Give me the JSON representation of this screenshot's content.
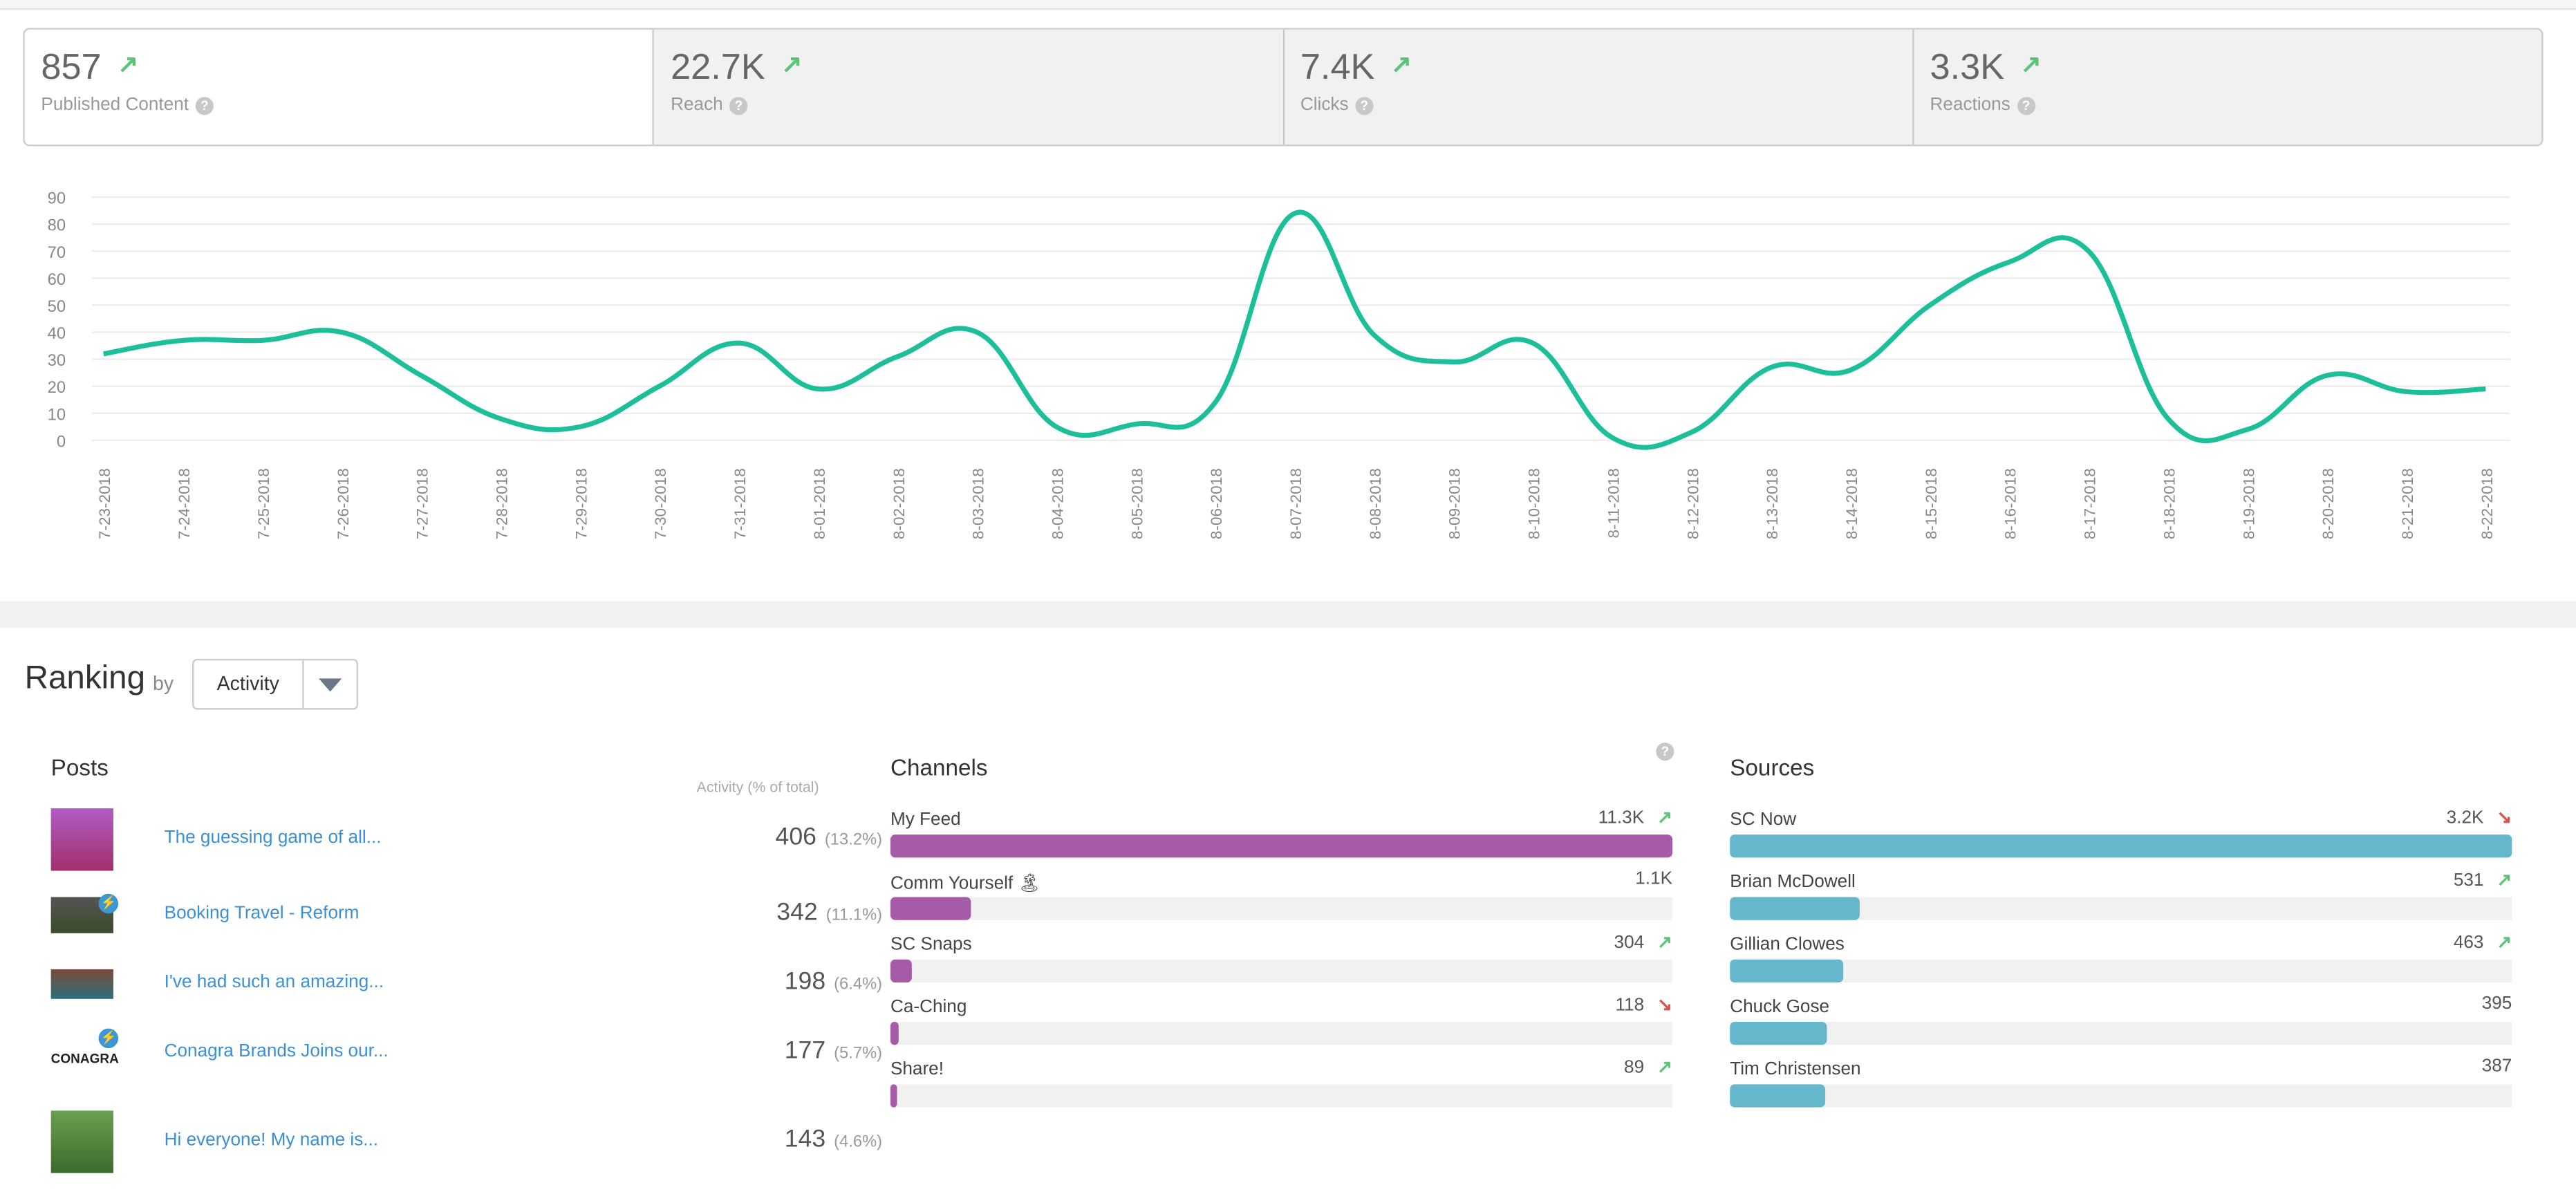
{
  "stats": [
    {
      "value": "857",
      "label": "Published Content",
      "trend": "up"
    },
    {
      "value": "22.7K",
      "label": "Reach",
      "trend": "up"
    },
    {
      "value": "7.4K",
      "label": "Clicks",
      "trend": "up"
    },
    {
      "value": "3.3K",
      "label": "Reactions",
      "trend": "up"
    }
  ],
  "colors": {
    "line": "#1dbf9b",
    "channels": "#a55ba8",
    "sources": "#65b8cb",
    "up": "#5cc37a",
    "down": "#d9534f",
    "link": "#3b8fd6"
  },
  "chart_data": {
    "type": "line",
    "categories": [
      "7-23-2018",
      "7-24-2018",
      "7-25-2018",
      "7-26-2018",
      "7-27-2018",
      "7-28-2018",
      "7-29-2018",
      "7-30-2018",
      "7-31-2018",
      "8-01-2018",
      "8-02-2018",
      "8-03-2018",
      "8-04-2018",
      "8-05-2018",
      "8-06-2018",
      "8-07-2018",
      "8-08-2018",
      "8-09-2018",
      "8-10-2018",
      "8-11-2018",
      "8-12-2018",
      "8-13-2018",
      "8-14-2018",
      "8-15-2018",
      "8-16-2018",
      "8-17-2018",
      "8-18-2018",
      "8-19-2018",
      "8-20-2018",
      "8-21-2018",
      "8-22-2018"
    ],
    "values": [
      32,
      37,
      37,
      40,
      24,
      8,
      5,
      20,
      36,
      19,
      31,
      40,
      5,
      6,
      14,
      84,
      39,
      29,
      36,
      1,
      3,
      27,
      26,
      50,
      66,
      70,
      8,
      4,
      24,
      18,
      19
    ],
    "yticks": [
      "0",
      "10",
      "20",
      "30",
      "40",
      "50",
      "60",
      "70",
      "80",
      "90"
    ],
    "ylim": [
      0,
      90
    ],
    "grid": true
  },
  "ranking": {
    "title": "Ranking",
    "by": "by",
    "dropdown": "Activity",
    "posts": {
      "title": "Posts",
      "subtitle": "Activity (% of total)",
      "items": [
        {
          "title": "The guessing game of all...",
          "value": "406",
          "pct": "(13.2%)",
          "thumb": "who-am-i-graphic",
          "badge": false
        },
        {
          "title": "Booking Travel - Reform",
          "value": "342",
          "pct": "(11.1%)",
          "thumb": "photo-person",
          "badge": true
        },
        {
          "title": "I've had such an amazing...",
          "value": "198",
          "pct": "(6.4%)",
          "thumb": "group-photo",
          "badge": false
        },
        {
          "title": "Conagra Brands Joins our...",
          "value": "177",
          "pct": "(5.7%)",
          "thumb": "conagra-logo",
          "badge": true,
          "logo_text": "CONAGRA"
        },
        {
          "title": "Hi everyone! My name is...",
          "value": "143",
          "pct": "(4.6%)",
          "thumb": "photo-woman-dog",
          "badge": false
        }
      ]
    },
    "channels": {
      "title": "Channels",
      "items": [
        {
          "name": "My Feed",
          "value": "11.3K",
          "trend": "up",
          "fraction": 1.0
        },
        {
          "name": "Comm Yourself 🏝",
          "value": "1.1K",
          "trend": "",
          "fraction": 0.103
        },
        {
          "name": "SC Snaps",
          "value": "304",
          "trend": "up",
          "fraction": 0.027
        },
        {
          "name": "Ca-Ching",
          "value": "118",
          "trend": "down",
          "fraction": 0.011
        },
        {
          "name": "Share!",
          "value": "89",
          "trend": "up",
          "fraction": 0.008
        }
      ]
    },
    "sources": {
      "title": "Sources",
      "items": [
        {
          "name": "SC Now",
          "value": "3.2K",
          "trend": "down",
          "fraction": 1.0
        },
        {
          "name": "Brian McDowell",
          "value": "531",
          "trend": "up",
          "fraction": 0.166
        },
        {
          "name": "Gillian Clowes",
          "value": "463",
          "trend": "up",
          "fraction": 0.145
        },
        {
          "name": "Chuck Gose",
          "value": "395",
          "trend": "",
          "fraction": 0.124
        },
        {
          "name": "Tim Christensen",
          "value": "387",
          "trend": "",
          "fraction": 0.121
        }
      ]
    }
  }
}
